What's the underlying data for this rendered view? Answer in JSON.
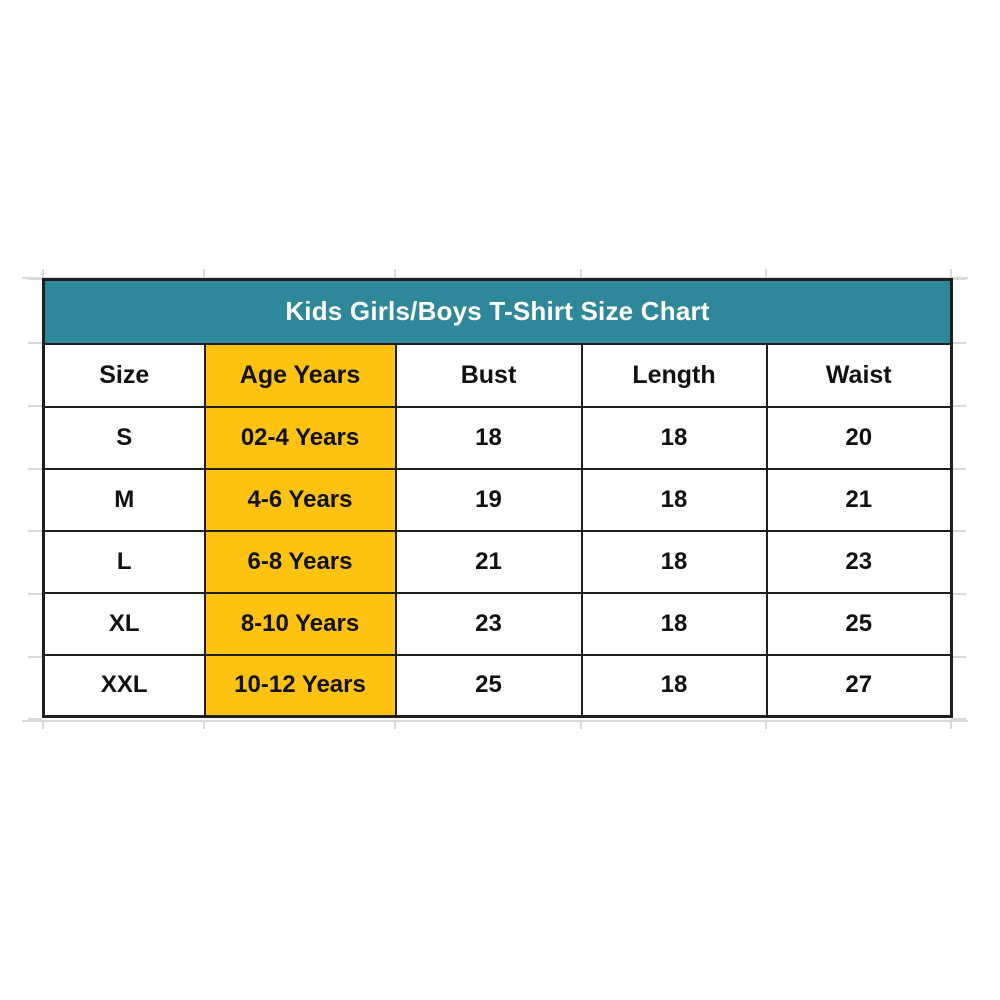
{
  "chart_data": {
    "type": "table",
    "title": "Kids Girls/Boys T-Shirt Size Chart",
    "columns": [
      "Size",
      "Age Years",
      "Bust",
      "Length",
      "Waist"
    ],
    "rows": [
      [
        "S",
        "02-4 Years",
        "18",
        "18",
        "20"
      ],
      [
        "M",
        "4-6 Years",
        "19",
        "18",
        "21"
      ],
      [
        "L",
        "6-8 Years",
        "21",
        "18",
        "23"
      ],
      [
        "XL",
        "8-10 Years",
        "23",
        "18",
        "25"
      ],
      [
        "XXL",
        "10-12 Years",
        "25",
        "18",
        "27"
      ]
    ],
    "layout": {
      "highlighted_column": "Age Years",
      "title_position": "top-merged-row",
      "grid": "on"
    }
  },
  "colors": {
    "title_bg": "#2E889A",
    "title_text": "#FFFFFF",
    "highlight_bg": "#FDC310",
    "cell_bg": "#FFFFFF",
    "border": "#1F1F1F",
    "text": "#111111",
    "gridline": "#D9D9D9",
    "page_bg": "#FFFFFF"
  }
}
